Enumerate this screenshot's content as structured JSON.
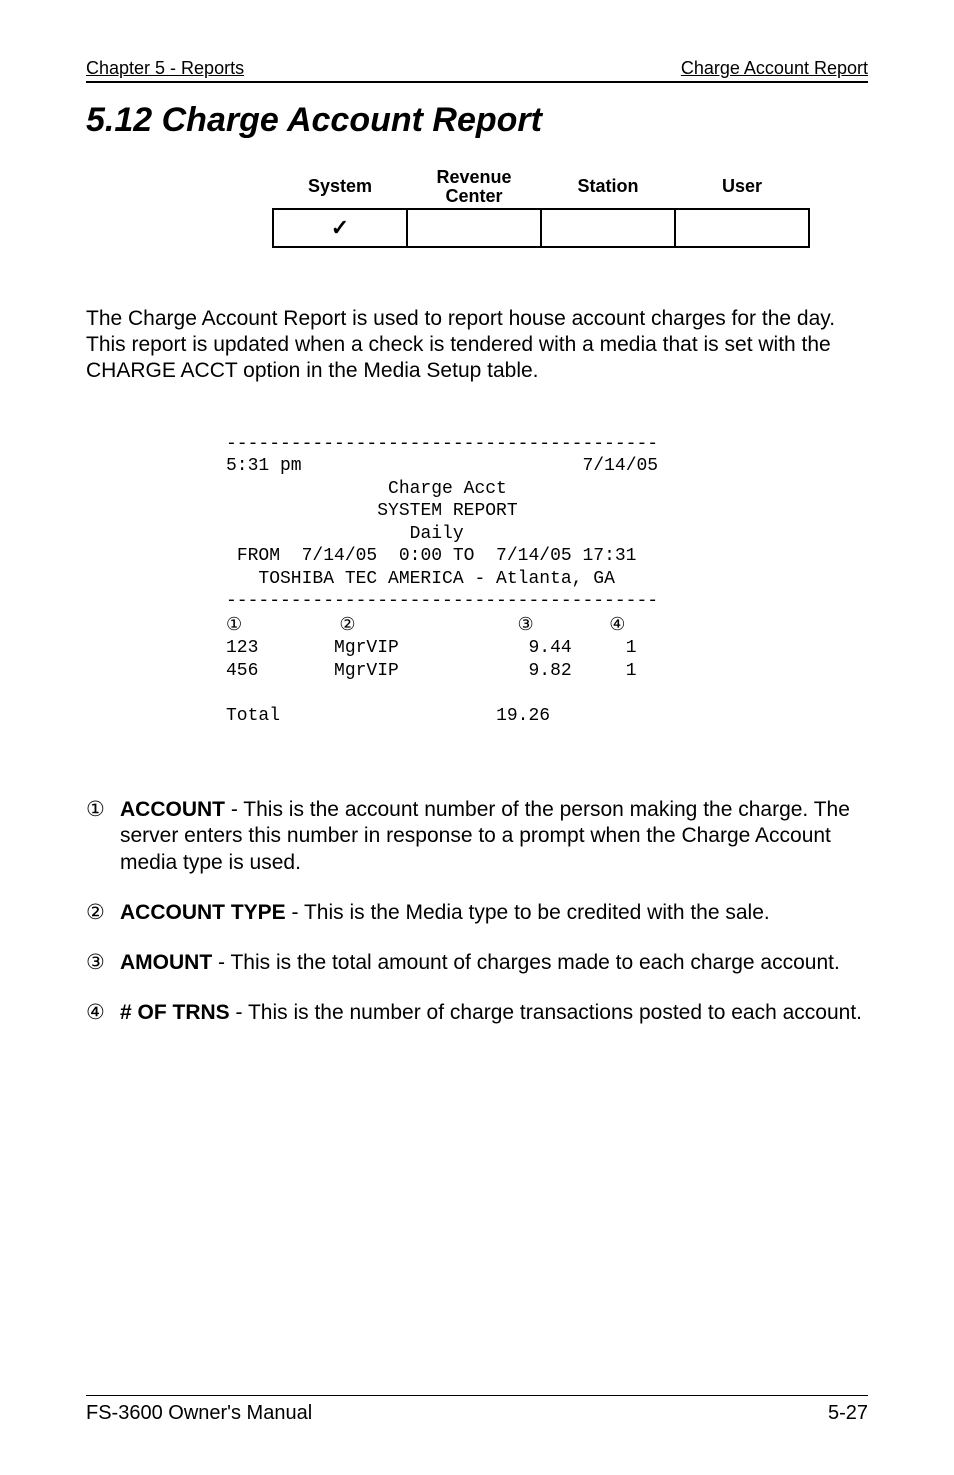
{
  "header": {
    "left": "Chapter 5 - Reports",
    "right": "Charge Account Report"
  },
  "section_title": "5.12   Charge Account Report",
  "availability_table": {
    "columns": [
      "System",
      "Revenue Center",
      "Station",
      "User"
    ],
    "check_col_index": 0,
    "check_glyph": "✓"
  },
  "intro_paragraph": "The Charge Account Report is used to report house account charges for the day.  This report is updated when a check is tendered with a media that is set with the CHARGE ACCT option in the Media Setup table.",
  "report": {
    "rule_dash_count": 40,
    "time": "5:31 pm",
    "date": "7/14/05",
    "title1": "Charge Acct",
    "title2": "SYSTEM REPORT",
    "title3": "Daily",
    "range_line": "FROM  7/14/05  0:00 TO  7/14/05 17:31",
    "company_line": "TOSHIBA TEC AMERICA - Atlanta, GA",
    "col_markers": [
      "①",
      "②",
      "③",
      "④"
    ],
    "rows": [
      {
        "acct": "123",
        "type": "MgrVIP",
        "amount": "9.44",
        "trns": "1"
      },
      {
        "acct": "456",
        "type": "MgrVIP",
        "amount": "9.82",
        "trns": "1"
      }
    ],
    "total_label": "Total",
    "total_amount": "19.26"
  },
  "definitions": [
    {
      "marker": "①",
      "term": "ACCOUNT",
      "text": " - This is the account number of the person making the charge.  The server enters this number in response to a prompt when the Charge Account media type is used."
    },
    {
      "marker": "②",
      "term": "ACCOUNT TYPE",
      "text": " - This is the Media type to be credited with the sale."
    },
    {
      "marker": "③",
      "term": "AMOUNT",
      "text": " - This is the total amount of charges made to each charge account."
    },
    {
      "marker": "④",
      "term": " # OF TRNS",
      "text": " - This is the number of charge transactions posted to each account."
    }
  ],
  "footer": {
    "left": "FS-3600 Owner's Manual",
    "right": "5-27"
  }
}
